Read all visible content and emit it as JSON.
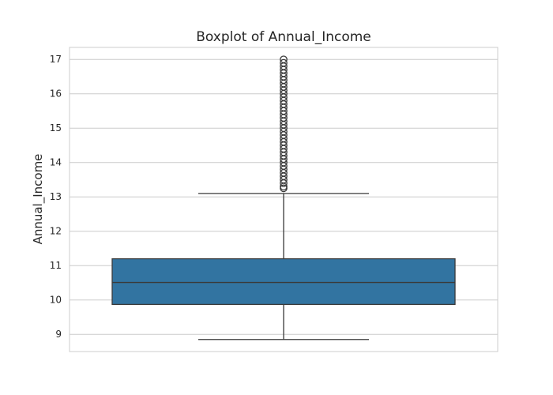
{
  "chart_data": {
    "type": "box",
    "title": "Boxplot of Annual_Income",
    "xlabel": "",
    "ylabel": "Annual_Income",
    "ylim": [
      8.5,
      17.35
    ],
    "yticks": [
      9,
      10,
      11,
      12,
      13,
      14,
      15,
      16,
      17
    ],
    "grid": true,
    "box": {
      "whisker_low": 8.85,
      "q1": 9.87,
      "median": 10.51,
      "q3": 11.2,
      "whisker_high": 13.1,
      "outliers": [
        13.25,
        13.3,
        13.4,
        13.5,
        13.6,
        13.7,
        13.8,
        13.9,
        14.0,
        14.1,
        14.2,
        14.3,
        14.4,
        14.5,
        14.6,
        14.7,
        14.8,
        14.9,
        15.0,
        15.1,
        15.2,
        15.3,
        15.4,
        15.5,
        15.6,
        15.7,
        15.8,
        15.9,
        16.0,
        16.1,
        16.2,
        16.3,
        16.4,
        16.5,
        16.6,
        16.7,
        16.8,
        16.9,
        17.0
      ]
    },
    "colors": {
      "box_fill": "#3274a1",
      "line": "#3a3a3a",
      "grid": "#cccccc",
      "frame": "#cccccc"
    }
  }
}
